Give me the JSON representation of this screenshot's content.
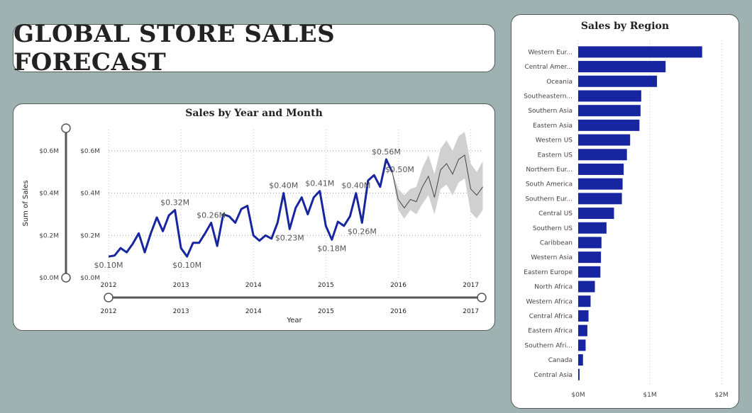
{
  "dashboard": {
    "title": "GLOBAL STORE SALES FORECAST"
  },
  "colors": {
    "background": "#9eb2b1",
    "bar": "#1726a0",
    "line": "#1726a0",
    "forecast": "#444444",
    "band": "#d0d0d0"
  },
  "line_chart_ui": {
    "range_slider_y_labels": [
      "$0.6M",
      "$0.4M",
      "$0.2M",
      "$0.0M"
    ],
    "range_slider_x_labels": [
      "2012",
      "2013",
      "2014",
      "2015",
      "2016",
      "2017"
    ]
  },
  "chart_data": [
    {
      "type": "line",
      "title": "Sales by Year and Month",
      "xlabel": "Year",
      "ylabel": "Sum of Sales",
      "ylim": [
        0,
        0.6
      ],
      "x_tick_labels": [
        "2012",
        "2013",
        "2014",
        "2015",
        "2016",
        "2017"
      ],
      "y_tick_labels": [
        "$0.6M",
        "$0.4M",
        "$0.2M",
        "$0.0M"
      ],
      "grid": true,
      "x_start": 2012.0,
      "x_step_years": 0.0833,
      "series": [
        {
          "values": [
            0.1,
            0.105,
            0.14,
            0.12,
            0.16,
            0.21,
            0.12,
            0.21,
            0.285,
            0.22,
            0.295,
            0.32,
            0.14,
            0.1,
            0.165,
            0.165,
            0.21,
            0.26,
            0.15,
            0.3,
            0.29,
            0.26,
            0.325,
            0.34,
            0.2,
            0.175,
            0.2,
            0.185,
            0.26,
            0.4,
            0.23,
            0.33,
            0.38,
            0.3,
            0.38,
            0.41,
            0.245,
            0.18,
            0.265,
            0.245,
            0.29,
            0.4,
            0.26,
            0.46,
            0.485,
            0.43,
            0.56,
            0.5
          ]
        },
        {
          "forecast": true,
          "x_start_index": 47,
          "values": [
            0.5,
            0.37,
            0.33,
            0.37,
            0.36,
            0.43,
            0.48,
            0.38,
            0.51,
            0.54,
            0.49,
            0.56,
            0.58,
            0.42,
            0.39,
            0.43
          ],
          "upper": [
            0.5,
            0.42,
            0.39,
            0.42,
            0.43,
            0.52,
            0.58,
            0.49,
            0.61,
            0.65,
            0.6,
            0.67,
            0.69,
            0.54,
            0.5,
            0.55
          ],
          "lower": [
            0.5,
            0.32,
            0.28,
            0.32,
            0.3,
            0.35,
            0.39,
            0.3,
            0.42,
            0.44,
            0.39,
            0.45,
            0.47,
            0.31,
            0.28,
            0.32
          ]
        }
      ],
      "data_labels": [
        {
          "index": 0,
          "text": "$0.10M",
          "pos": "below"
        },
        {
          "index": 11,
          "text": "$0.32M",
          "pos": "above"
        },
        {
          "index": 13,
          "text": "$0.10M",
          "pos": "below"
        },
        {
          "index": 17,
          "text": "$0.26M",
          "pos": "above"
        },
        {
          "index": 29,
          "text": "$0.40M",
          "pos": "above"
        },
        {
          "index": 30,
          "text": "$0.23M",
          "pos": "below"
        },
        {
          "index": 35,
          "text": "$0.41M",
          "pos": "above"
        },
        {
          "index": 37,
          "text": "$0.18M",
          "pos": "below"
        },
        {
          "index": 41,
          "text": "$0.40M",
          "pos": "above"
        },
        {
          "index": 42,
          "text": "$0.26M",
          "pos": "below"
        },
        {
          "index": 46,
          "text": "$0.56M",
          "pos": "above"
        },
        {
          "index": 47,
          "text": "$0.50M",
          "pos": "right"
        }
      ]
    },
    {
      "type": "bar",
      "orientation": "horizontal",
      "title": "Sales by Region",
      "xlim": [
        0,
        2000000
      ],
      "x_tick_labels": [
        "$0M",
        "$1M",
        "$2M"
      ],
      "categories": [
        "Western Eur...",
        "Central Amer...",
        "Oceania",
        "Southeastern...",
        "Southern Asia",
        "Eastern Asia",
        "Western US",
        "Eastern US",
        "Northern Eur...",
        "South America",
        "Southern Eur...",
        "Central US",
        "Southern US",
        "Caribbean",
        "Western Asia",
        "Eastern Europe",
        "North Africa",
        "Western Africa",
        "Central Africa",
        "Eastern Africa",
        "Southern Afri...",
        "Canada",
        "Central Asia"
      ],
      "values": [
        1730000,
        1220000,
        1100000,
        880000,
        870000,
        855000,
        725000,
        680000,
        635000,
        620000,
        610000,
        500000,
        395000,
        325000,
        318000,
        310000,
        233000,
        173000,
        144000,
        128000,
        104000,
        67000,
        19000
      ]
    }
  ]
}
